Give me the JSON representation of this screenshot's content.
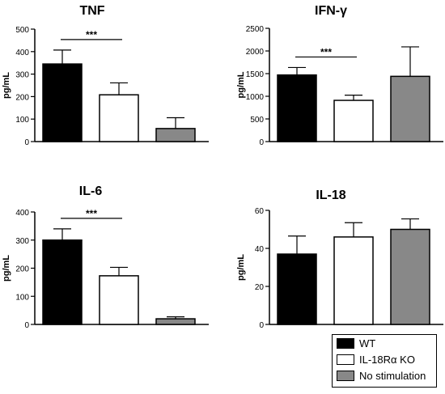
{
  "colors": {
    "WT": "#000000",
    "IL-18Rα KO": "#ffffff",
    "No stimulation": "#888888",
    "axis": "#000000"
  },
  "legend": {
    "items": [
      {
        "label": "WT",
        "color": "#000000"
      },
      {
        "label": "IL-18Rα KO",
        "color": "#ffffff"
      },
      {
        "label": "No stimulation",
        "color": "#888888"
      }
    ]
  },
  "chart_data": [
    {
      "type": "bar",
      "title": "TNF",
      "ylabel": "pg/mL",
      "ylim": [
        0,
        500
      ],
      "yticks": [
        0,
        100,
        200,
        300,
        400,
        500
      ],
      "categories": [
        "WT",
        "IL-18Rα KO",
        "No stimulation"
      ],
      "values": [
        345,
        208,
        58
      ],
      "errors": [
        62,
        53,
        48
      ],
      "significance": {
        "from": 0,
        "to": 1,
        "label": "***"
      }
    },
    {
      "type": "bar",
      "title": "IFN-γ",
      "ylabel": "pg/mL",
      "ylim": [
        0,
        2500
      ],
      "yticks": [
        0,
        500,
        1000,
        1500,
        2000,
        2500
      ],
      "categories": [
        "WT",
        "IL-18Rα KO",
        "No stimulation"
      ],
      "values": [
        1470,
        910,
        1440
      ],
      "errors": [
        165,
        115,
        650
      ],
      "significance": {
        "from": 0,
        "to": 1,
        "label": "***"
      }
    },
    {
      "type": "bar",
      "title": "IL-6",
      "ylabel": "pg/mL",
      "ylim": [
        0,
        400
      ],
      "yticks": [
        0,
        100,
        200,
        300,
        400
      ],
      "categories": [
        "WT",
        "IL-18Rα KO",
        "No stimulation"
      ],
      "values": [
        300,
        173,
        20
      ],
      "errors": [
        40,
        30,
        7
      ],
      "significance": {
        "from": 0,
        "to": 1,
        "label": "***"
      }
    },
    {
      "type": "bar",
      "title": "IL-18",
      "ylabel": "pg/mL",
      "ylim": [
        0,
        60
      ],
      "yticks": [
        0,
        20,
        40,
        60
      ],
      "categories": [
        "WT",
        "IL-18Rα KO",
        "No stimulation"
      ],
      "values": [
        37,
        46,
        50
      ],
      "errors": [
        9.5,
        7.5,
        5.5
      ],
      "significance": null
    }
  ]
}
